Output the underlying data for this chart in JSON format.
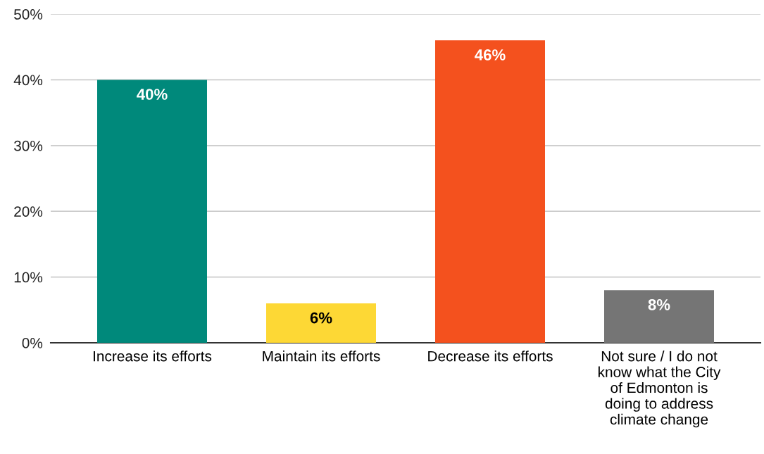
{
  "chart_data": {
    "type": "bar",
    "categories": [
      "Increase its efforts",
      "Maintain its efforts",
      "Decrease its efforts",
      "Not sure / I do not\nknow what the City\nof Edmonton is\ndoing to address\nclimate change"
    ],
    "values": [
      40,
      6,
      46,
      8
    ],
    "colors": [
      "#00897b",
      "#fdd835",
      "#f4511e",
      "#757575"
    ],
    "value_labels": [
      "40%",
      "6%",
      "46%",
      "8%"
    ],
    "ylim": [
      0,
      50
    ],
    "yticks": [
      {
        "value": 0,
        "label": "0%"
      },
      {
        "value": 10,
        "label": "10%"
      },
      {
        "value": 20,
        "label": "20%"
      },
      {
        "value": 30,
        "label": "30%"
      },
      {
        "value": 40,
        "label": "40%"
      },
      {
        "value": 50,
        "label": "50%"
      }
    ],
    "grid": "y",
    "legend": false
  }
}
